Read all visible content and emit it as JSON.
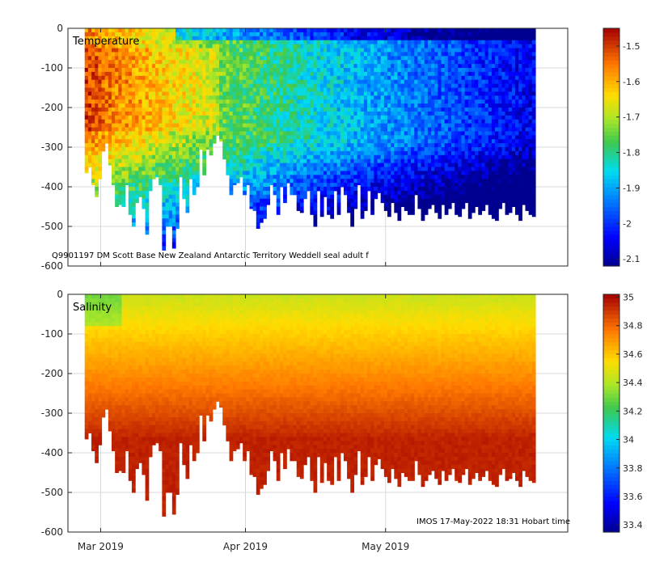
{
  "figure": {
    "footer": "IMOS 17-May-2022 18:31 Hobart time",
    "x_tick_labels": [
      "Mar 2019",
      "Apr 2019",
      "May 2019"
    ]
  },
  "colors": {
    "cold": "#00008f",
    "warm": "#a50000",
    "grid": "#d8d8d8",
    "axis": "#262626"
  },
  "chart_data": [
    {
      "type": "heatmap",
      "title": "Temperature",
      "annotation": "Q9901197 DM Scott Base New Zealand Antarctic Territory Weddell seal adult f",
      "ylabel": "",
      "ylim": [
        -600,
        0
      ],
      "y_ticks": [
        0,
        -100,
        -200,
        -300,
        -400,
        -500,
        -600
      ],
      "y_tick_labels": [
        "0",
        "-100",
        "-200",
        "-300",
        "-400",
        "-500",
        "-600"
      ],
      "x_ticks": [
        "2019-03-01",
        "2019-04-01",
        "2019-05-01"
      ],
      "xlim": [
        "2019-02-22",
        "2019-06-09"
      ],
      "colorbar": {
        "range": [
          -2.12,
          -1.45
        ],
        "ticks": [
          -1.5,
          -1.6,
          -1.7,
          -1.8,
          -1.9,
          -2,
          -2.1
        ],
        "tick_labels": [
          "-1.5",
          "-1.6",
          "-1.7",
          "-1.8",
          "-1.9",
          "-2",
          "-2.1"
        ]
      },
      "profile_start": "2019-02-26",
      "profile_end": "2019-05-30",
      "profile_step_days": 0.72,
      "approx_max_depth": [
        365,
        350,
        395,
        425,
        380,
        310,
        290,
        345,
        395,
        450,
        445,
        450,
        395,
        470,
        500,
        440,
        425,
        455,
        520,
        410,
        380,
        375,
        395,
        560,
        500,
        500,
        555,
        505,
        375,
        430,
        465,
        380,
        420,
        400,
        305,
        370,
        305,
        320,
        290,
        270,
        285,
        330,
        370,
        420,
        395,
        390,
        375,
        420,
        395,
        455,
        460,
        505,
        490,
        480,
        445,
        395,
        420,
        470,
        400,
        440,
        390,
        420,
        420,
        460,
        465,
        430,
        410,
        470,
        500,
        410,
        475,
        425,
        470,
        480,
        410,
        470,
        400,
        420,
        465,
        500,
        455,
        395,
        480,
        460,
        410,
        470,
        430,
        415,
        440,
        460,
        475,
        440,
        465,
        485,
        450,
        460,
        470,
        470,
        420,
        455,
        485,
        470,
        455,
        445,
        465,
        480,
        445,
        470,
        455,
        440,
        470,
        475,
        455,
        440,
        480,
        465,
        450,
        470,
        460,
        445,
        470,
        480,
        485,
        455,
        440,
        470,
        465,
        450,
        470,
        485,
        445,
        460,
        470,
        475
      ],
      "narrative": "Warm water (about -1.5 to -1.6 C) in the upper 300 m during late February and early March, cooling to about -1.8 to -1.9 C in April and -2 to -2.1 C by May; colder water below about 350 m throughout."
    },
    {
      "type": "heatmap",
      "title": "Salinity",
      "ylabel": "",
      "ylim": [
        -600,
        0
      ],
      "y_ticks": [
        0,
        -100,
        -200,
        -300,
        -400,
        -500,
        -600
      ],
      "y_tick_labels": [
        "0",
        "-100",
        "-200",
        "-300",
        "-400",
        "-500",
        "-600"
      ],
      "x_ticks": [
        "2019-03-01",
        "2019-04-01",
        "2019-05-01"
      ],
      "xlim": [
        "2019-02-22",
        "2019-06-09"
      ],
      "colorbar": {
        "range": [
          33.35,
          35.02
        ],
        "ticks": [
          35,
          34.8,
          34.6,
          34.4,
          34.2,
          34,
          33.8,
          33.6,
          33.4
        ],
        "tick_labels": [
          "35",
          "34.8",
          "34.6",
          "34.4",
          "34.2",
          "34",
          "33.8",
          "33.6",
          "33.4"
        ]
      },
      "surface_value": 34.45,
      "deep_value": 34.95,
      "narrative": "Salinity about 34.4 to 34.6 near the surface increasing to about 34.9 to 35.0 at depth; fresher surface water (about 34.3) in late February."
    }
  ]
}
